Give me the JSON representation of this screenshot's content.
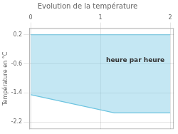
{
  "chart_data": {
    "type": "area",
    "title": "Evolution de la température",
    "y_label": "Température en °C",
    "x": [
      0,
      1.2,
      2
    ],
    "series": [
      {
        "color": "#6cc4e0",
        "values": [
          -1.45,
          -1.95,
          -1.95
        ]
      },
      {
        "color": "#6cc4e0",
        "values": [
          0.2,
          0.2,
          0.2
        ]
      }
    ],
    "xlim": [
      -0.02,
      2.05
    ],
    "xticks": [
      0,
      1,
      2
    ],
    "ylim": [
      -2.4,
      0.38
    ],
    "yticks": [
      0.2,
      -0.6,
      -1.4,
      -2.2
    ],
    "grid": true,
    "annotations": [
      {
        "text": "heure par heure",
        "x": 1.5,
        "y": -0.5
      }
    ]
  }
}
